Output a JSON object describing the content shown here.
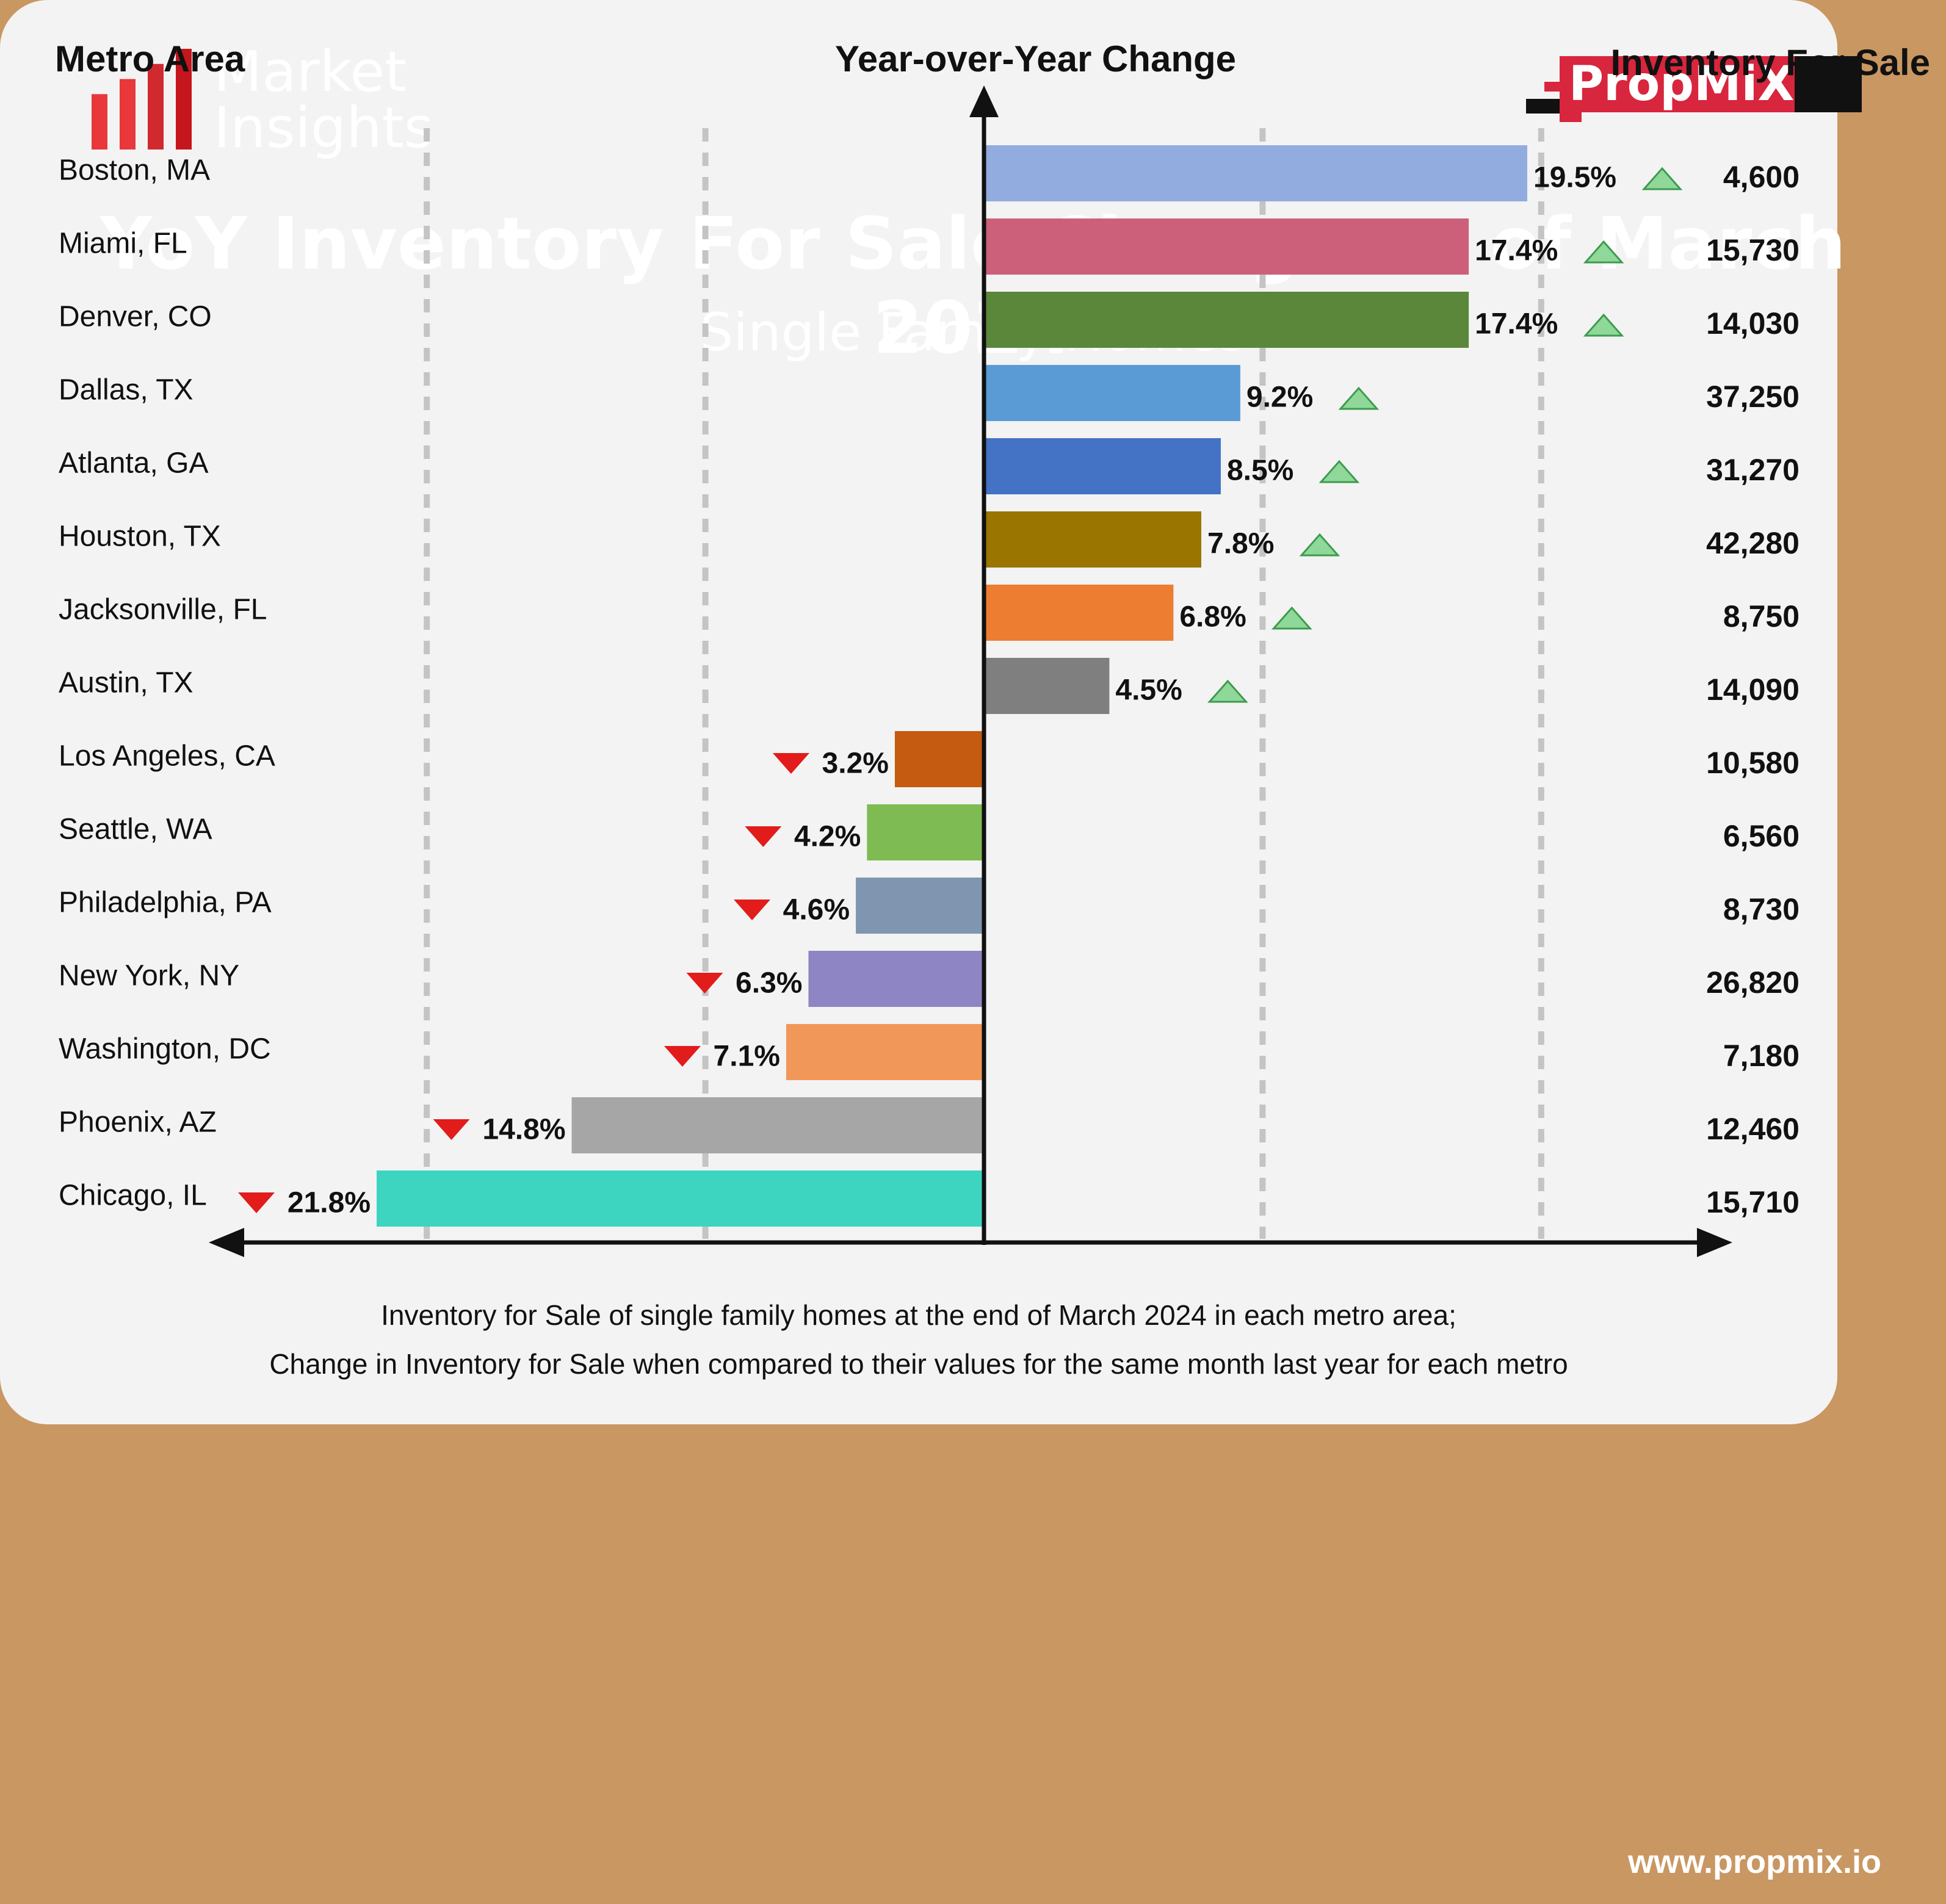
{
  "brand": {
    "logo_line1": "Market",
    "logo_line2": "Insights",
    "logo_bar_colors": [
      "#E8383B",
      "#E8383B",
      "#D12A2E",
      "#C4161C"
    ],
    "propmix_text": "PropMiX",
    "propmix_colors": {
      "red": "#D7263D",
      "black": "#111111"
    }
  },
  "headers": {
    "metro": "Metro Area",
    "change": "Year-over-Year Change",
    "inventory": "Inventory For Sale"
  },
  "footer": {
    "caption_line1": "Inventory for Sale of single family homes at the end of March 2024 in each metro area;",
    "caption_line2": "Change in Inventory for Sale when compared to their values for the same month last year for each metro",
    "url": "www.propmix.io"
  },
  "colors": {
    "background": "#C99762",
    "panel": "#F3F3F3",
    "up_arrow": "#8FD89A",
    "down_arrow": "#E21B1B"
  },
  "chart_data": {
    "type": "bar",
    "orientation": "horizontal",
    "title": "YoY Inventory For Sale Change as of March 2024",
    "subtitle": "Single Family Homes",
    "xlim": [
      -25,
      25
    ],
    "grid": "dashed vertical lines",
    "categories": [
      "Boston, MA",
      "Miami, FL",
      "Denver, CO",
      "Dallas, TX",
      "Atlanta, GA",
      "Houston, TX",
      "Jacksonville, FL",
      "Austin, TX",
      "Los Angeles, CA",
      "Seattle, WA",
      "Philadelphia, PA",
      "New York, NY",
      "Washington, DC",
      "Phoenix, AZ",
      "Chicago, IL"
    ],
    "values": [
      19.5,
      17.4,
      17.4,
      9.2,
      8.5,
      7.8,
      6.8,
      4.5,
      -3.2,
      -4.2,
      -4.6,
      -6.3,
      -7.1,
      -14.8,
      -21.8
    ],
    "value_labels": [
      "19.5%",
      "17.4%",
      "17.4%",
      "9.2%",
      "8.5%",
      "7.8%",
      "6.8%",
      "4.5%",
      "3.2%",
      "4.2%",
      "4.6%",
      "6.3%",
      "7.1%",
      "14.8%",
      "21.8%"
    ],
    "inventory": [
      "4,600",
      "15,730",
      "14,030",
      "37,250",
      "31,270",
      "42,280",
      "8,750",
      "14,090",
      "10,580",
      "6,560",
      "8,730",
      "26,820",
      "7,180",
      "12,460",
      "15,710"
    ],
    "bar_colors": [
      "#92ACDF",
      "#CC607A",
      "#5B873A",
      "#5B9BD5",
      "#4472C4",
      "#9A7500",
      "#ED7D31",
      "#7F7F7F",
      "#C55A11",
      "#7FBB53",
      "#8096B0",
      "#8E85C5",
      "#F2975A",
      "#A6A6A6",
      "#3DD4C0"
    ]
  }
}
